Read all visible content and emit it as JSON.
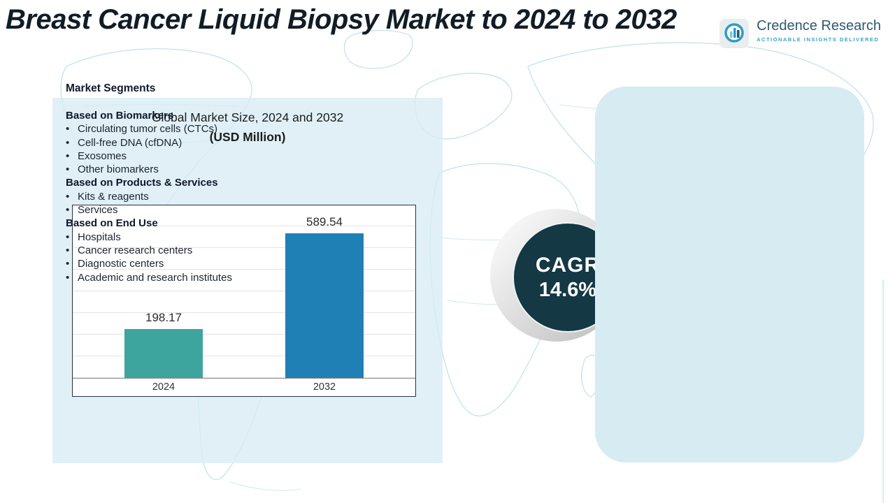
{
  "title": "Breast Cancer Liquid Biopsy Market to 2024 to 2032",
  "logo": {
    "name": "Credence Research",
    "tagline": "Actionable Insights Delivered"
  },
  "market_size": {
    "heading_line1": "Global Market Size, 2024 and 2032",
    "heading_line2": "(USD Million)"
  },
  "chart_data": {
    "type": "bar",
    "categories": [
      "2024",
      "2032"
    ],
    "values": [
      198.17,
      589.54
    ],
    "title": "Global Market Size, 2024 and 2032 (USD Million)",
    "xlabel": "",
    "ylabel": "USD Million",
    "ylim": [
      0,
      700
    ],
    "grid": "horizontal",
    "legend": "none",
    "colors": [
      "#3da49e",
      "#1f80b5"
    ]
  },
  "cagr": {
    "label": "CAGR",
    "value": "14.6%"
  },
  "segments": {
    "heading": "Market Segments",
    "bullet_glyph": "•",
    "groups": [
      {
        "title": "Based on Biomarkers",
        "items": [
          "Circulating tumor cells (CTCs)",
          "Cell-free DNA (cfDNA)",
          "Exosomes",
          "Other biomarkers"
        ]
      },
      {
        "title": "Based on Products & Services",
        "items": [
          "Kits & reagents",
          "Services"
        ]
      },
      {
        "title": "Based on End Use",
        "items": [
          "Hospitals",
          "Cancer research centers",
          "Diagnostic centers",
          "Academic and research institutes"
        ]
      }
    ]
  },
  "colors": {
    "bar_2024": "#3da49e",
    "bar_2032": "#1f80b5",
    "cagr_circle": "#143844",
    "panel_left": "#d7ecf4",
    "panel_right": "#d7ebf3",
    "map_lines": "#bfe1ea"
  }
}
